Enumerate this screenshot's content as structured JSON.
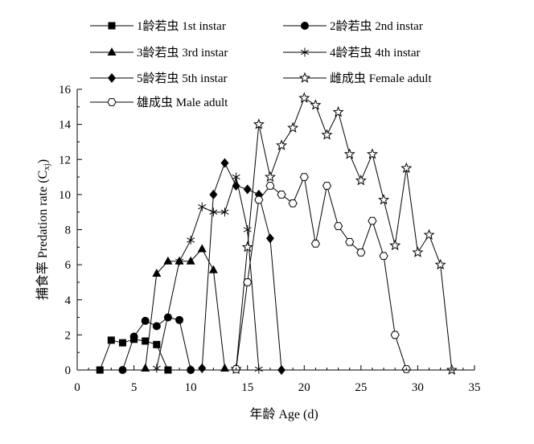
{
  "chart_data": {
    "type": "line",
    "xlabel": "年龄 Age (d)",
    "ylabel": "捕食率 Predation rate (C",
    "ylabel_sub": "xj",
    "ylabel_end": ")",
    "xlim": [
      0,
      35
    ],
    "ylim": [
      0,
      16
    ],
    "xticks": [
      "0",
      "5",
      "10",
      "15",
      "20",
      "25",
      "30",
      "35"
    ],
    "yticks": [
      "0",
      "2",
      "4",
      "6",
      "8",
      "10",
      "12",
      "14",
      "16"
    ],
    "grid": false,
    "legend_position": "top",
    "series": [
      {
        "name": "1龄若虫 1st instar",
        "marker": "square",
        "points": [
          [
            2,
            0
          ],
          [
            3,
            1.7
          ],
          [
            4,
            1.55
          ],
          [
            5,
            1.75
          ],
          [
            6,
            1.65
          ],
          [
            7,
            1.45
          ],
          [
            8,
            0
          ]
        ]
      },
      {
        "name": "2龄若虫 2nd instar",
        "marker": "circle",
        "points": [
          [
            4,
            0
          ],
          [
            5,
            1.9
          ],
          [
            6,
            2.8
          ],
          [
            7,
            2.5
          ],
          [
            8,
            3.0
          ],
          [
            9,
            2.85
          ],
          [
            10,
            0
          ]
        ]
      },
      {
        "name": "3龄若虫 3rd instar",
        "marker": "triangle",
        "points": [
          [
            6,
            0.1
          ],
          [
            7,
            5.5
          ],
          [
            8,
            6.2
          ],
          [
            9,
            6.2
          ],
          [
            10,
            6.2
          ],
          [
            11,
            6.9
          ],
          [
            12,
            5.7
          ],
          [
            13,
            0.1
          ]
        ]
      },
      {
        "name": "4龄若虫 4th instar",
        "marker": "star6",
        "points": [
          [
            7,
            0.1
          ],
          [
            9,
            6.2
          ],
          [
            10,
            7.4
          ],
          [
            11,
            9.3
          ],
          [
            12,
            9.0
          ],
          [
            13,
            9.0
          ],
          [
            14,
            11.0
          ],
          [
            15,
            8.0
          ],
          [
            16,
            0.05
          ]
        ]
      },
      {
        "name": "5龄若虫 5th instar",
        "marker": "diamond",
        "points": [
          [
            11,
            0.1
          ],
          [
            12,
            10.0
          ],
          [
            13,
            11.8
          ],
          [
            14,
            10.5
          ],
          [
            15,
            10.3
          ],
          [
            16,
            10.0
          ],
          [
            17,
            7.5
          ],
          [
            18,
            0
          ]
        ]
      },
      {
        "name": "雌成虫 Female adult",
        "marker": "star5",
        "points": [
          [
            14,
            0.05
          ],
          [
            15,
            7.0
          ],
          [
            16,
            14.0
          ],
          [
            17,
            11.0
          ],
          [
            18,
            12.8
          ],
          [
            19,
            13.8
          ],
          [
            20,
            15.5
          ],
          [
            21,
            15.1
          ],
          [
            22,
            13.4
          ],
          [
            23,
            14.7
          ],
          [
            24,
            12.3
          ],
          [
            25,
            10.8
          ],
          [
            26,
            12.3
          ],
          [
            27,
            9.7
          ],
          [
            28,
            7.1
          ],
          [
            29,
            11.5
          ],
          [
            30,
            6.7
          ],
          [
            31,
            7.7
          ],
          [
            32,
            6.0
          ],
          [
            33,
            0
          ]
        ]
      },
      {
        "name": "雄成虫 Male adult",
        "marker": "hexagon",
        "points": [
          [
            14,
            0.05
          ],
          [
            15,
            5.0
          ],
          [
            16,
            9.7
          ],
          [
            17,
            10.5
          ],
          [
            18,
            10.0
          ],
          [
            19,
            9.5
          ],
          [
            20,
            11.0
          ],
          [
            21,
            7.2
          ],
          [
            22,
            10.5
          ],
          [
            23,
            8.2
          ],
          [
            24,
            7.3
          ],
          [
            25,
            6.7
          ],
          [
            26,
            8.5
          ],
          [
            27,
            6.5
          ],
          [
            28,
            2.0
          ],
          [
            29,
            0.05
          ]
        ]
      }
    ]
  }
}
